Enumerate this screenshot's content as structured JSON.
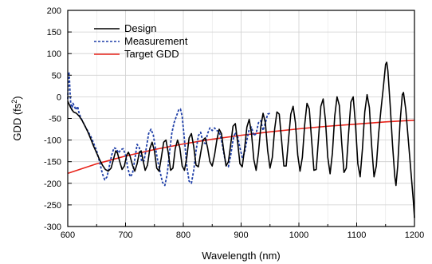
{
  "chart_data": {
    "type": "line",
    "title": "",
    "xlabel": "Wavelength (nm)",
    "ylabel_main": "GDD (fs",
    "ylabel_sup": "2",
    "ylabel_close": ")",
    "xlim": [
      600,
      1200
    ],
    "ylim": [
      -300,
      200
    ],
    "xticks": [
      600,
      700,
      800,
      900,
      1000,
      1100,
      1200
    ],
    "yticks": [
      200,
      150,
      100,
      50,
      0,
      -50,
      -100,
      -150,
      -200,
      -250,
      -300
    ],
    "grid": true,
    "legend_position": "top-left",
    "series": [
      {
        "name": "Design",
        "color": "#000000",
        "style": "solid",
        "points": [
          [
            600,
            -10
          ],
          [
            605,
            -25
          ],
          [
            610,
            -35
          ],
          [
            615,
            -38
          ],
          [
            620,
            -45
          ],
          [
            625,
            -55
          ],
          [
            630,
            -68
          ],
          [
            635,
            -82
          ],
          [
            640,
            -98
          ],
          [
            645,
            -115
          ],
          [
            650,
            -130
          ],
          [
            655,
            -145
          ],
          [
            660,
            -158
          ],
          [
            665,
            -168
          ],
          [
            670,
            -172
          ],
          [
            675,
            -165
          ],
          [
            680,
            -140
          ],
          [
            683,
            -125
          ],
          [
            686,
            -130
          ],
          [
            690,
            -150
          ],
          [
            694,
            -168
          ],
          [
            698,
            -160
          ],
          [
            702,
            -135
          ],
          [
            705,
            -128
          ],
          [
            708,
            -138
          ],
          [
            712,
            -158
          ],
          [
            716,
            -172
          ],
          [
            720,
            -155
          ],
          [
            724,
            -128
          ],
          [
            727,
            -125
          ],
          [
            730,
            -145
          ],
          [
            734,
            -170
          ],
          [
            738,
            -158
          ],
          [
            742,
            -120
          ],
          [
            746,
            -105
          ],
          [
            750,
            -125
          ],
          [
            754,
            -165
          ],
          [
            758,
            -172
          ],
          [
            762,
            -140
          ],
          [
            766,
            -105
          ],
          [
            770,
            -100
          ],
          [
            774,
            -130
          ],
          [
            778,
            -170
          ],
          [
            782,
            -165
          ],
          [
            786,
            -120
          ],
          [
            790,
            -100
          ],
          [
            794,
            -118
          ],
          [
            798,
            -160
          ],
          [
            802,
            -170
          ],
          [
            806,
            -140
          ],
          [
            810,
            -95
          ],
          [
            814,
            -85
          ],
          [
            818,
            -115
          ],
          [
            822,
            -158
          ],
          [
            826,
            -162
          ],
          [
            830,
            -130
          ],
          [
            834,
            -100
          ],
          [
            838,
            -95
          ],
          [
            842,
            -118
          ],
          [
            846,
            -150
          ],
          [
            850,
            -160
          ],
          [
            854,
            -135
          ],
          [
            858,
            -100
          ],
          [
            862,
            -75
          ],
          [
            866,
            -85
          ],
          [
            870,
            -125
          ],
          [
            874,
            -160
          ],
          [
            878,
            -150
          ],
          [
            882,
            -110
          ],
          [
            886,
            -68
          ],
          [
            890,
            -62
          ],
          [
            894,
            -105
          ],
          [
            898,
            -155
          ],
          [
            902,
            -162
          ],
          [
            906,
            -120
          ],
          [
            910,
            -70
          ],
          [
            914,
            -52
          ],
          [
            918,
            -85
          ],
          [
            922,
            -145
          ],
          [
            926,
            -170
          ],
          [
            930,
            -130
          ],
          [
            934,
            -70
          ],
          [
            938,
            -38
          ],
          [
            942,
            -60
          ],
          [
            946,
            -125
          ],
          [
            950,
            -165
          ],
          [
            954,
            -140
          ],
          [
            958,
            -75
          ],
          [
            962,
            -35
          ],
          [
            966,
            -40
          ],
          [
            970,
            -100
          ],
          [
            974,
            -160
          ],
          [
            978,
            -160
          ],
          [
            982,
            -100
          ],
          [
            986,
            -40
          ],
          [
            990,
            -22
          ],
          [
            994,
            -60
          ],
          [
            998,
            -135
          ],
          [
            1002,
            -172
          ],
          [
            1006,
            -140
          ],
          [
            1010,
            -65
          ],
          [
            1014,
            -15
          ],
          [
            1018,
            -28
          ],
          [
            1022,
            -100
          ],
          [
            1026,
            -170
          ],
          [
            1030,
            -168
          ],
          [
            1034,
            -95
          ],
          [
            1038,
            -22
          ],
          [
            1042,
            -5
          ],
          [
            1046,
            -55
          ],
          [
            1050,
            -140
          ],
          [
            1054,
            -178
          ],
          [
            1058,
            -130
          ],
          [
            1062,
            -45
          ],
          [
            1066,
            0
          ],
          [
            1070,
            -20
          ],
          [
            1074,
            -105
          ],
          [
            1078,
            -175
          ],
          [
            1082,
            -165
          ],
          [
            1086,
            -85
          ],
          [
            1090,
            -12
          ],
          [
            1094,
            0
          ],
          [
            1098,
            -65
          ],
          [
            1102,
            -155
          ],
          [
            1106,
            -185
          ],
          [
            1110,
            -120
          ],
          [
            1114,
            -35
          ],
          [
            1118,
            5
          ],
          [
            1122,
            -25
          ],
          [
            1126,
            -115
          ],
          [
            1130,
            -185
          ],
          [
            1134,
            -160
          ],
          [
            1138,
            -85
          ],
          [
            1142,
            -30
          ],
          [
            1146,
            20
          ],
          [
            1150,
            75
          ],
          [
            1152,
            80
          ],
          [
            1154,
            60
          ],
          [
            1158,
            -20
          ],
          [
            1162,
            -110
          ],
          [
            1166,
            -185
          ],
          [
            1168,
            -205
          ],
          [
            1171,
            -160
          ],
          [
            1175,
            -60
          ],
          [
            1179,
            5
          ],
          [
            1181,
            10
          ],
          [
            1185,
            -30
          ],
          [
            1190,
            -110
          ],
          [
            1194,
            -175
          ],
          [
            1198,
            -240
          ],
          [
            1200,
            -280
          ]
        ]
      },
      {
        "name": "Measurement",
        "color": "#1f3fa8",
        "style": "dashed",
        "points": [
          [
            600,
            -5
          ],
          [
            601,
            35
          ],
          [
            602,
            58
          ],
          [
            603,
            40
          ],
          [
            604,
            10
          ],
          [
            605,
            -12
          ],
          [
            607,
            -30
          ],
          [
            609,
            -15
          ],
          [
            611,
            -20
          ],
          [
            614,
            -30
          ],
          [
            617,
            -22
          ],
          [
            620,
            -40
          ],
          [
            625,
            -55
          ],
          [
            630,
            -68
          ],
          [
            635,
            -80
          ],
          [
            640,
            -92
          ],
          [
            645,
            -108
          ],
          [
            650,
            -125
          ],
          [
            655,
            -150
          ],
          [
            660,
            -178
          ],
          [
            664,
            -192
          ],
          [
            668,
            -185
          ],
          [
            672,
            -160
          ],
          [
            676,
            -135
          ],
          [
            680,
            -118
          ],
          [
            684,
            -120
          ],
          [
            688,
            -130
          ],
          [
            692,
            -122
          ],
          [
            696,
            -120
          ],
          [
            700,
            -135
          ],
          [
            704,
            -165
          ],
          [
            708,
            -185
          ],
          [
            712,
            -178
          ],
          [
            716,
            -145
          ],
          [
            720,
            -110
          ],
          [
            724,
            -118
          ],
          [
            728,
            -150
          ],
          [
            732,
            -148
          ],
          [
            736,
            -118
          ],
          [
            740,
            -85
          ],
          [
            744,
            -75
          ],
          [
            748,
            -88
          ],
          [
            752,
            -120
          ],
          [
            756,
            -150
          ],
          [
            760,
            -175
          ],
          [
            764,
            -198
          ],
          [
            768,
            -205
          ],
          [
            772,
            -180
          ],
          [
            776,
            -130
          ],
          [
            780,
            -85
          ],
          [
            784,
            -60
          ],
          [
            788,
            -45
          ],
          [
            792,
            -30
          ],
          [
            795,
            -28
          ],
          [
            798,
            -45
          ],
          [
            802,
            -100
          ],
          [
            806,
            -160
          ],
          [
            810,
            -195
          ],
          [
            814,
            -200
          ],
          [
            818,
            -170
          ],
          [
            822,
            -125
          ],
          [
            826,
            -90
          ],
          [
            830,
            -82
          ],
          [
            834,
            -105
          ],
          [
            838,
            -108
          ],
          [
            842,
            -85
          ],
          [
            846,
            -72
          ],
          [
            850,
            -78
          ],
          [
            854,
            -72
          ],
          [
            858,
            -78
          ],
          [
            862,
            -80
          ],
          [
            866,
            -100
          ],
          [
            870,
            -130
          ],
          [
            874,
            -158
          ],
          [
            878,
            -162
          ],
          [
            882,
            -135
          ],
          [
            886,
            -100
          ],
          [
            890,
            -82
          ],
          [
            894,
            -92
          ],
          [
            898,
            -118
          ],
          [
            902,
            -140
          ],
          [
            906,
            -130
          ],
          [
            910,
            -100
          ],
          [
            914,
            -75
          ],
          [
            918,
            -70
          ],
          [
            922,
            -90
          ],
          [
            926,
            -85
          ],
          [
            930,
            -60
          ],
          [
            934,
            -55
          ],
          [
            938,
            -78
          ],
          [
            942,
            -60
          ],
          [
            946,
            -40
          ],
          [
            950,
            -38
          ]
        ]
      },
      {
        "name": "Target GDD",
        "color": "#e8231a",
        "style": "solid",
        "points": [
          [
            600,
            -177
          ],
          [
            650,
            -155
          ],
          [
            700,
            -137
          ],
          [
            750,
            -122
          ],
          [
            800,
            -109
          ],
          [
            850,
            -98
          ],
          [
            900,
            -89
          ],
          [
            950,
            -81
          ],
          [
            1000,
            -74
          ],
          [
            1050,
            -68
          ],
          [
            1100,
            -63
          ],
          [
            1150,
            -58
          ],
          [
            1200,
            -54
          ]
        ]
      }
    ]
  }
}
